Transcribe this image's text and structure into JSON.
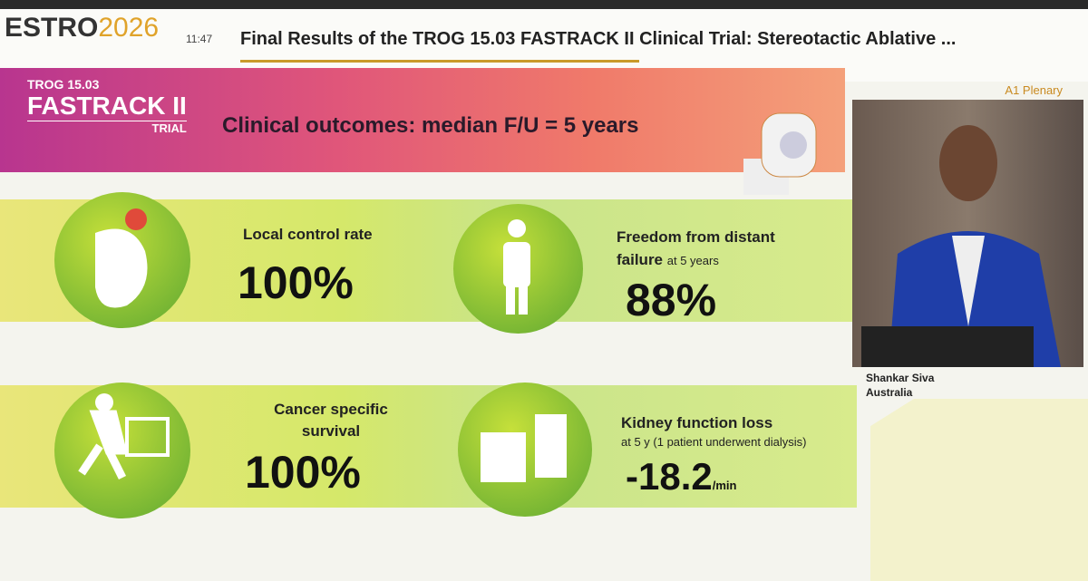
{
  "header": {
    "logo_left": "ESTRO",
    "logo_right": "2026",
    "time": "11:47",
    "title": "Final Results of the TROG 15.03 FASTRACK II Clinical Trial: Stereotactic Ablative ...",
    "session": "A1 Plenary"
  },
  "slide": {
    "brand_top": "TROG 15.03",
    "brand_main": "FASTRACK II",
    "brand_sub": "TRIAL",
    "heading": "Clinical outcomes: median F/U = 5 years",
    "outcomes": [
      {
        "label": "Local control rate",
        "value": "100%"
      },
      {
        "label": "Freedom from distant failure",
        "note": "at 5 years",
        "value": "88%"
      },
      {
        "label": "Cancer specific survival",
        "value": "100%"
      },
      {
        "label": "Kidney function loss",
        "note": "at 5 y (1 patient underwent dialysis)",
        "value": "-18.2",
        "unit": "/min"
      }
    ]
  },
  "speaker": {
    "name": "Shankar Siva",
    "country": "Australia"
  }
}
